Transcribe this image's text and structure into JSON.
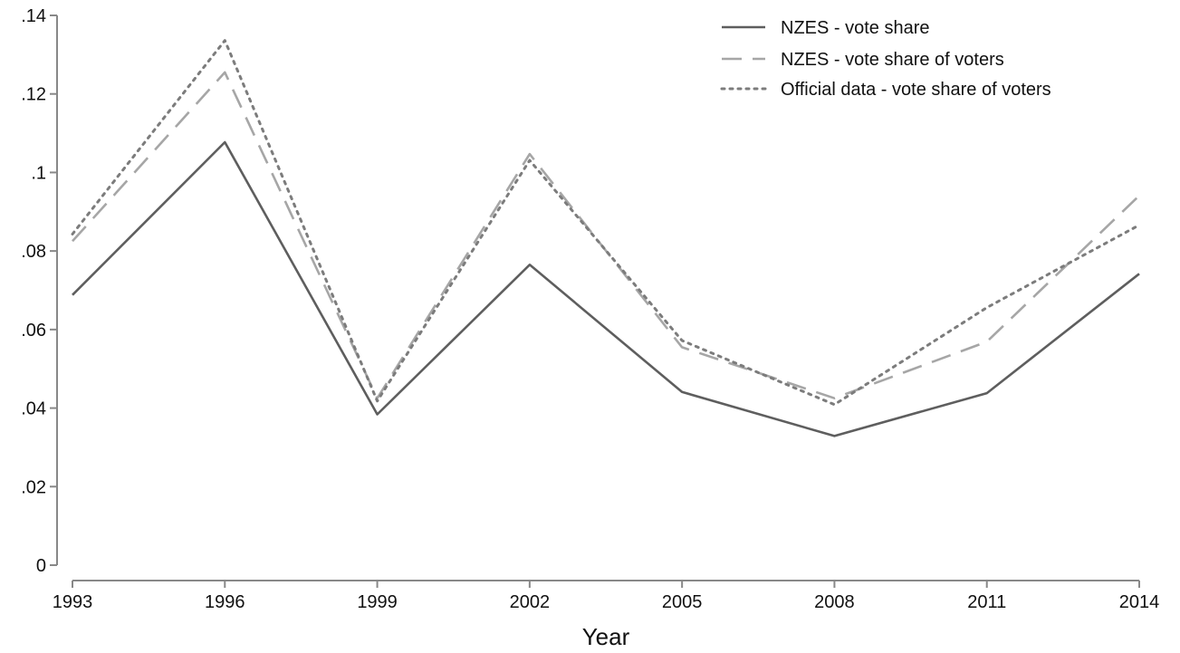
{
  "chart_data": {
    "type": "line",
    "title": "",
    "xlabel": "Year",
    "ylabel": "",
    "x": [
      1993,
      1996,
      1999,
      2002,
      2005,
      2008,
      2011,
      2014
    ],
    "x_tick_labels": [
      "1993",
      "1996",
      "1999",
      "2002",
      "2005",
      "2008",
      "2011",
      "2014"
    ],
    "y_ticks": [
      0,
      0.02,
      0.04,
      0.06,
      0.08,
      0.1,
      0.12,
      0.14
    ],
    "y_tick_labels": [
      "0",
      ".02",
      ".04",
      ".06",
      ".08",
      ".1",
      ".12",
      ".14"
    ],
    "xlim": [
      1993,
      2014
    ],
    "ylim": [
      0,
      0.14
    ],
    "grid": false,
    "legend_position": "top-right",
    "series": [
      {
        "name": "NZES - vote share",
        "style": "solid",
        "color": "#5e5e5e",
        "values": [
          0.0688,
          0.1077,
          0.0384,
          0.0765,
          0.0441,
          0.0329,
          0.0438,
          0.0742
        ]
      },
      {
        "name": "NZES - vote share of voters",
        "style": "dashed",
        "color": "#a6a6a6",
        "values": [
          0.0825,
          0.1255,
          0.0425,
          0.1047,
          0.0555,
          0.0425,
          0.0569,
          0.0941
        ]
      },
      {
        "name": "Official data - vote share of voters",
        "style": "dotted",
        "color": "#7c7c7c",
        "values": [
          0.0843,
          0.1336,
          0.0418,
          0.1031,
          0.0572,
          0.0409,
          0.0656,
          0.0866
        ]
      }
    ]
  }
}
